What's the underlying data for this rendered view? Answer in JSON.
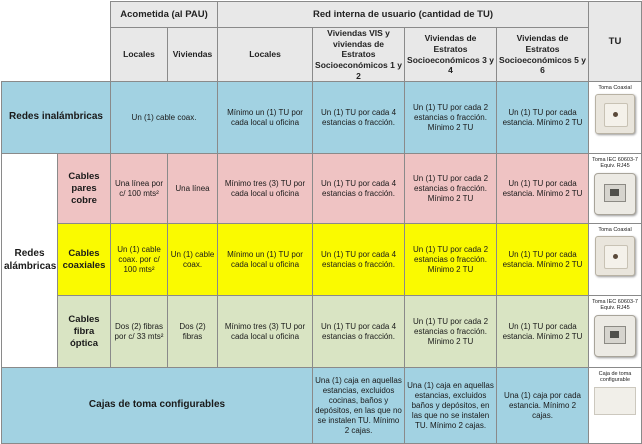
{
  "header": {
    "acometida": "Acometida (al PAU)",
    "red_interna": "Red interna de usuario (cantidad de TU)",
    "tu": "TU",
    "locales_1": "Locales",
    "viviendas": "Viviendas",
    "locales_2": "Locales",
    "vis": "Viviendas VIS y viviendas de Estratos Socioeconómicos 1 y 2",
    "estratos34": "Viviendas de Estratos Socioeconómicos 3 y 4",
    "estratos56": "Viviendas de Estratos Socioeconómicos 5 y 6"
  },
  "inalambricas": {
    "label": "Redes inalámbricas",
    "acometida": "Un (1) cable coax.",
    "locales": "Mínimo un (1) TU por cada local u oficina",
    "vis": "Un (1) TU por cada 4 estancias o fracción.",
    "e34": "Un (1) TU por cada 2 estancias o fracción. Mínimo 2 TU",
    "e56": "Un (1) TU por cada estancia. Mínimo 2 TU",
    "tu_label": "Toma Coaxial",
    "tu_icon": "coaxial-outlet-icon"
  },
  "alambricas": {
    "label": "Redes alámbricas",
    "pares": {
      "cat": "Cables pares cobre",
      "acom_locales": "Una línea por c/ 100 mts²",
      "acom_viviendas": "Una línea",
      "locales": "Mínimo tres (3) TU por cada local u oficina",
      "vis": "Un (1) TU por cada 4 estancias o fracción.",
      "e34": "Un (1) TU por cada 2 estancias o fracción. Mínimo 2 TU",
      "e56": "Un (1) TU por cada estancia. Mínimo 2 TU",
      "tu_label": "Toma IEC 60603-7 Equiv. RJ45",
      "tu_icon": "rj45-outlet-icon"
    },
    "coax": {
      "cat": "Cables coaxiales",
      "acom_locales": "Un (1) cable coax. por c/ 100 mts²",
      "acom_viviendas": "Un (1) cable coax.",
      "locales": "Mínimo un (1) TU por cada local u oficina",
      "vis": "Un (1) TU por cada 4 estancias o fracción.",
      "e34": "Un (1) TU por cada 2 estancias o fracción. Mínimo 2 TU",
      "e56": "Un (1) TU por cada estancia. Mínimo 2 TU",
      "tu_label": "Toma Coaxial",
      "tu_icon": "coaxial-outlet-icon"
    },
    "fibra": {
      "cat": "Cables fibra óptica",
      "acom_locales": "Dos (2) fibras por c/ 33 mts²",
      "acom_viviendas": "Dos (2) fibras",
      "locales": "Mínimo tres (3) TU por cada local u oficina",
      "vis": "Un (1) TU por cada 4 estancias o fracción.",
      "e34": "Un (1) TU por cada 2 estancias o fracción. Mínimo 2 TU",
      "e56": "Un (1) TU por cada estancia. Mínimo 2 TU",
      "tu_label": "Toma IEC 60603-7 Equiv. RJ45",
      "tu_icon": "rj45-outlet-icon"
    }
  },
  "cajas": {
    "label": "Cajas de toma configurables",
    "vis": "Una (1) caja en aquellas estancias, excluidos cocinas, baños y depósitos, en las que no se instalen TU. Mínimo 2 cajas.",
    "e34": "Una (1) caja en aquellas estancias, excluidos baños y depósitos, en las que no se instalen TU. Mínimo 2 cajas.",
    "e56": "Una (1) caja por cada estancia. Mínimo 2 cajas.",
    "tu_label": "Caja de toma configurable",
    "tu_icon": "configurable-box-icon"
  },
  "colors": {
    "header": "#e8e8e8",
    "inalambricas": "#a2d2e2",
    "pares": "#efc3c3",
    "coax": "#fafa00",
    "fibra": "#d9e4c3",
    "cajas": "#a2d2e2"
  }
}
